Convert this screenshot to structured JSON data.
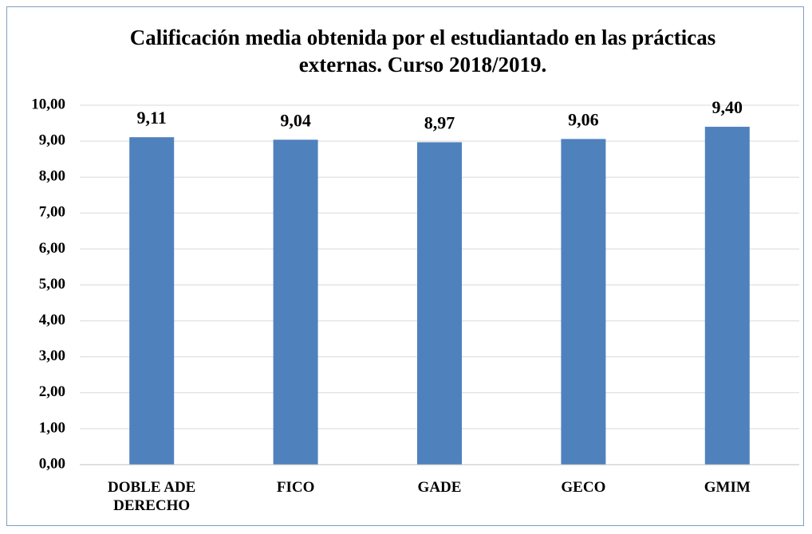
{
  "chart_data": {
    "type": "bar",
    "title": "Calificación media obtenida por el estudiantado en las prácticas externas. Curso 2018/2019.",
    "categories": [
      "DOBLE ADE DERECHO",
      "FICO",
      "GADE",
      "GECO",
      "GMIM"
    ],
    "values": [
      9.11,
      9.04,
      8.97,
      9.06,
      9.4
    ],
    "value_labels": [
      "9,11",
      "9,04",
      "8,97",
      "9,06",
      "9,40"
    ],
    "color": "#4f81bd",
    "ylim": [
      0,
      10
    ],
    "yticks": [
      {
        "value": 0,
        "label": "0,00"
      },
      {
        "value": 1,
        "label": "1,00"
      },
      {
        "value": 2,
        "label": "2,00"
      },
      {
        "value": 3,
        "label": "3,00"
      },
      {
        "value": 4,
        "label": "4,00"
      },
      {
        "value": 5,
        "label": "5,00"
      },
      {
        "value": 6,
        "label": "6,00"
      },
      {
        "value": 7,
        "label": "7,00"
      },
      {
        "value": 8,
        "label": "8,00"
      },
      {
        "value": 9,
        "label": "9,00"
      },
      {
        "value": 10,
        "label": "10,00"
      }
    ],
    "grid": true
  }
}
